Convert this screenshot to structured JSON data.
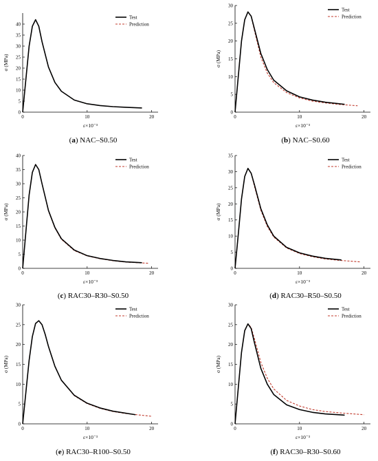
{
  "chart_data": [
    {
      "type": "line",
      "caption_label": "(a)",
      "caption_text": "NAC–S0.50",
      "ylabel": "σ (MPa)",
      "xlabel": "ε×10⁻³",
      "xlim": [
        0,
        21
      ],
      "ylim": [
        0,
        45
      ],
      "xticks": [
        0,
        10,
        20
      ],
      "yticks": [
        0,
        5,
        10,
        15,
        20,
        25,
        30,
        35,
        40
      ],
      "legend": "top-right",
      "peak_x": 2.0,
      "peak_y": 42.0,
      "x_end_test": 18.5,
      "x_end_pred": 18.5,
      "y_end_test": 1.9,
      "y_end_pred": 1.9,
      "series": [
        {
          "name": "Test",
          "color": "#000000",
          "style": "solid",
          "x": [
            0,
            0.5,
            1.0,
            1.5,
            2.0,
            2.5,
            3.0,
            4.0,
            5.0,
            6.0,
            8.0,
            10.0,
            12.0,
            14.0,
            16.0,
            18.5
          ],
          "y": [
            0,
            15.0,
            30.0,
            39.0,
            42.0,
            39.0,
            32.0,
            20.5,
            13.5,
            9.5,
            5.5,
            3.8,
            3.0,
            2.5,
            2.2,
            1.9
          ]
        },
        {
          "name": "Prediction",
          "color": "#c0392b",
          "style": "dashed",
          "x": [
            0,
            0.5,
            1.0,
            1.5,
            2.0,
            2.5,
            3.0,
            4.0,
            5.0,
            6.0,
            8.0,
            10.0,
            12.0,
            14.0,
            16.0,
            18.5
          ],
          "y": [
            0,
            15.0,
            30.0,
            39.0,
            42.0,
            39.0,
            32.0,
            20.5,
            13.5,
            9.5,
            5.5,
            3.8,
            3.0,
            2.5,
            2.2,
            1.9
          ]
        }
      ]
    },
    {
      "type": "line",
      "caption_label": "(b)",
      "caption_text": "NAC–S0.60",
      "ylabel": "σ (MPa)",
      "xlabel": "ε×10⁻³",
      "xlim": [
        0,
        21
      ],
      "ylim": [
        0,
        30
      ],
      "xticks": [
        0,
        10,
        20
      ],
      "yticks": [
        0,
        5,
        10,
        15,
        20,
        25,
        30
      ],
      "legend": "top-right",
      "series": [
        {
          "name": "Test",
          "color": "#000000",
          "style": "solid",
          "x": [
            0,
            0.5,
            1.0,
            1.5,
            2.0,
            2.5,
            3.0,
            4.0,
            5.0,
            6.0,
            8.0,
            10.0,
            12.0,
            14.0,
            17.0
          ],
          "y": [
            0,
            10.0,
            20.0,
            26.0,
            28.2,
            27.0,
            23.5,
            16.5,
            12.0,
            9.0,
            6.0,
            4.3,
            3.4,
            2.8,
            2.2
          ]
        },
        {
          "name": "Prediction",
          "color": "#c0392b",
          "style": "dashed",
          "x": [
            0,
            0.5,
            1.0,
            1.5,
            2.0,
            2.5,
            3.0,
            4.0,
            5.0,
            6.0,
            8.0,
            10.0,
            12.0,
            14.0,
            16.0,
            19.0
          ],
          "y": [
            0,
            10.0,
            20.0,
            26.0,
            28.2,
            27.0,
            23.0,
            15.5,
            11.0,
            8.3,
            5.5,
            4.0,
            3.1,
            2.6,
            2.2,
            1.8
          ]
        }
      ]
    },
    {
      "type": "line",
      "caption_label": "(c)",
      "caption_text": "RAC30–R30–S0.50",
      "ylabel": "σ (MPa)",
      "xlabel": "ε×10⁻³",
      "xlim": [
        0,
        21
      ],
      "ylim": [
        0,
        40
      ],
      "xticks": [
        0,
        10,
        20
      ],
      "yticks": [
        0,
        5,
        10,
        15,
        20,
        25,
        30,
        35,
        40
      ],
      "legend": "top-right",
      "series": [
        {
          "name": "Test",
          "color": "#000000",
          "style": "solid",
          "x": [
            0,
            0.5,
            1.0,
            1.5,
            2.0,
            2.5,
            3.0,
            4.0,
            5.0,
            6.0,
            8.0,
            10.0,
            12.0,
            14.0,
            16.0,
            18.5
          ],
          "y": [
            0,
            13.0,
            26.0,
            34.0,
            36.8,
            35.0,
            30.0,
            20.5,
            14.5,
            10.5,
            6.5,
            4.5,
            3.5,
            2.8,
            2.3,
            2.0
          ]
        },
        {
          "name": "Prediction",
          "color": "#c0392b",
          "style": "dashed",
          "x": [
            0,
            0.5,
            1.0,
            1.5,
            2.0,
            2.5,
            3.0,
            4.0,
            5.0,
            6.0,
            8.0,
            10.0,
            12.0,
            14.0,
            16.0,
            19.5
          ],
          "y": [
            0,
            13.0,
            26.0,
            34.0,
            36.8,
            35.0,
            30.0,
            20.3,
            14.3,
            10.3,
            6.3,
            4.4,
            3.4,
            2.7,
            2.2,
            1.8
          ]
        }
      ]
    },
    {
      "type": "line",
      "caption_label": "(d)",
      "caption_text": "RAC30–R50–S0.50",
      "ylabel": "σ (MPa)",
      "xlabel": "ε×10⁻³",
      "xlim": [
        0,
        21
      ],
      "ylim": [
        0,
        35
      ],
      "xticks": [
        0,
        10,
        20
      ],
      "yticks": [
        0,
        5,
        10,
        15,
        20,
        25,
        30,
        35
      ],
      "legend": "top-right",
      "series": [
        {
          "name": "Test",
          "color": "#000000",
          "style": "solid",
          "x": [
            0,
            0.5,
            1.0,
            1.5,
            2.0,
            2.5,
            3.0,
            4.0,
            5.0,
            6.0,
            8.0,
            10.0,
            12.0,
            14.0,
            16.5
          ],
          "y": [
            0,
            10.5,
            21.5,
            28.5,
            31.0,
            29.5,
            26.0,
            18.5,
            13.5,
            10.0,
            6.5,
            4.8,
            3.8,
            3.1,
            2.6
          ]
        },
        {
          "name": "Prediction",
          "color": "#c0392b",
          "style": "dashed",
          "x": [
            0,
            0.5,
            1.0,
            1.5,
            2.0,
            2.5,
            3.0,
            4.0,
            5.0,
            6.0,
            8.0,
            10.0,
            12.0,
            14.0,
            16.0,
            19.5
          ],
          "y": [
            0,
            10.5,
            21.5,
            28.5,
            31.0,
            29.5,
            25.5,
            18.0,
            13.0,
            9.7,
            6.3,
            4.6,
            3.6,
            2.9,
            2.5,
            2.0
          ]
        }
      ]
    },
    {
      "type": "line",
      "caption_label": "(e)",
      "caption_text": "RAC30–R100–S0.50",
      "ylabel": "σ (MPa)",
      "xlabel": "ε×10⁻³",
      "xlim": [
        0,
        21
      ],
      "ylim": [
        0,
        30
      ],
      "xticks": [
        0,
        10,
        20
      ],
      "yticks": [
        0,
        5,
        10,
        15,
        20,
        25,
        30
      ],
      "legend": "top-right",
      "series": [
        {
          "name": "Test",
          "color": "#000000",
          "style": "solid",
          "x": [
            0,
            0.5,
            1.0,
            1.5,
            2.0,
            2.5,
            3.0,
            3.5,
            4.0,
            5.0,
            6.0,
            8.0,
            10.0,
            12.0,
            14.0,
            17.5
          ],
          "y": [
            0,
            8.0,
            16.0,
            22.0,
            25.3,
            26.0,
            25.0,
            22.5,
            19.5,
            14.5,
            11.0,
            7.2,
            5.2,
            4.0,
            3.2,
            2.3
          ]
        },
        {
          "name": "Prediction",
          "color": "#c0392b",
          "style": "dashed",
          "x": [
            0,
            0.5,
            1.0,
            1.5,
            2.0,
            2.5,
            3.0,
            3.5,
            4.0,
            5.0,
            6.0,
            8.0,
            10.0,
            12.0,
            14.0,
            16.0,
            20.0
          ],
          "y": [
            0,
            8.0,
            16.0,
            22.0,
            25.3,
            26.0,
            25.0,
            22.5,
            19.5,
            14.5,
            11.0,
            7.1,
            5.1,
            3.9,
            3.1,
            2.6,
            1.9
          ]
        }
      ]
    },
    {
      "type": "line",
      "caption_label": "(f)",
      "caption_text": "RAC30–R30–S0.60",
      "ylabel": "σ (MPa)",
      "xlabel": "ε×10⁻³",
      "xlim": [
        0,
        21
      ],
      "ylim": [
        0,
        30
      ],
      "xticks": [
        0,
        10,
        20
      ],
      "yticks": [
        0,
        5,
        10,
        15,
        20,
        25,
        30
      ],
      "legend": "top-right",
      "series": [
        {
          "name": "Test",
          "color": "#000000",
          "style": "solid",
          "x": [
            0,
            0.5,
            1.0,
            1.5,
            2.0,
            2.5,
            3.0,
            4.0,
            5.0,
            6.0,
            8.0,
            10.0,
            12.0,
            14.0,
            17.0
          ],
          "y": [
            0,
            9.0,
            18.0,
            23.5,
            25.2,
            24.0,
            20.5,
            14.0,
            10.0,
            7.4,
            4.8,
            3.6,
            2.9,
            2.5,
            2.2
          ]
        },
        {
          "name": "Prediction",
          "color": "#c0392b",
          "style": "dashed",
          "x": [
            0,
            0.5,
            1.0,
            1.5,
            2.0,
            2.5,
            3.0,
            4.0,
            5.0,
            6.0,
            8.0,
            10.0,
            12.0,
            14.0,
            16.0,
            20.0
          ],
          "y": [
            0,
            9.0,
            18.0,
            23.5,
            25.2,
            24.3,
            21.5,
            15.5,
            11.5,
            8.8,
            5.9,
            4.5,
            3.6,
            3.1,
            2.8,
            2.3
          ]
        }
      ]
    }
  ]
}
